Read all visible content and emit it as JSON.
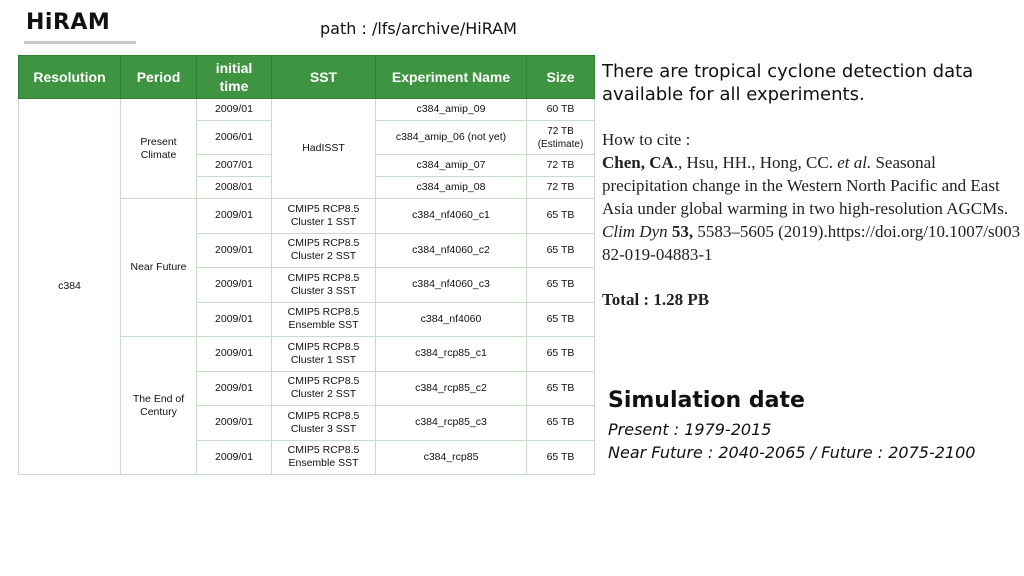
{
  "header": {
    "title": "HiRAM",
    "path": "path : /lfs/archive/HiRAM"
  },
  "table": {
    "headers": [
      "Resolution",
      "Period",
      "initial time",
      "SST",
      "Experiment Name",
      "Size"
    ],
    "resolution": "c384",
    "periods": [
      "Present Climate",
      "Near Future",
      "The End of Century"
    ],
    "present_sst": "HadISST",
    "rows": [
      {
        "time": "2009/01",
        "sst": "",
        "exp": "c384_amip_09",
        "size": "60 TB"
      },
      {
        "time": "2006/01",
        "sst": "",
        "exp": "c384_amip_06 (not yet)",
        "size": "72 TB (Estimate)"
      },
      {
        "time": "2007/01",
        "sst": "",
        "exp": "c384_amip_07",
        "size": "72 TB"
      },
      {
        "time": "2008/01",
        "sst": "",
        "exp": "c384_amip_08",
        "size": "72 TB"
      },
      {
        "time": "2009/01",
        "sst": "CMIP5 RCP8.5 Cluster 1 SST",
        "exp": "c384_nf4060_c1",
        "size": "65 TB"
      },
      {
        "time": "2009/01",
        "sst": "CMIP5 RCP8.5 Cluster 2 SST",
        "exp": "c384_nf4060_c2",
        "size": "65 TB"
      },
      {
        "time": "2009/01",
        "sst": "CMIP5 RCP8.5 Cluster 3 SST",
        "exp": "c384_nf4060_c3",
        "size": "65 TB"
      },
      {
        "time": "2009/01",
        "sst": "CMIP5 RCP8.5 Ensemble SST",
        "exp": "c384_nf4060",
        "size": "65 TB"
      },
      {
        "time": "2009/01",
        "sst": "CMIP5 RCP8.5 Cluster 1 SST",
        "exp": "c384_rcp85_c1",
        "size": "65 TB"
      },
      {
        "time": "2009/01",
        "sst": "CMIP5 RCP8.5 Cluster 2 SST",
        "exp": "c384_rcp85_c2",
        "size": "65 TB"
      },
      {
        "time": "2009/01",
        "sst": "CMIP5 RCP8.5 Cluster 3 SST",
        "exp": "c384_rcp85_c3",
        "size": "65 TB"
      },
      {
        "time": "2009/01",
        "sst": "CMIP5 RCP8.5 Ensemble SST",
        "exp": "c384_rcp85",
        "size": "65 TB"
      }
    ]
  },
  "description": "There are tropical cyclone detection data available for all experiments.",
  "citation": {
    "label": "How to cite :",
    "authors_bold": "Chen, CA",
    "authors_rest": "., Hsu, HH., Hong, CC.",
    "et_al": "et al.",
    "title_text": "Seasonal precipitation change in the Western North Pacific and East Asia under global warming in two high-resolution AGCMs.",
    "journal": "Clim Dyn",
    "volume": "53,",
    "pages_year": "5583–5605 (2019).https://doi.org/10.1007/s00382-019-04883-1"
  },
  "total": "Total : 1.28 PB",
  "simulation": {
    "title": "Simulation date",
    "present": "Present  : 1979-2015",
    "future": "Near Future : 2040-2065  / Future : 2075-2100"
  }
}
